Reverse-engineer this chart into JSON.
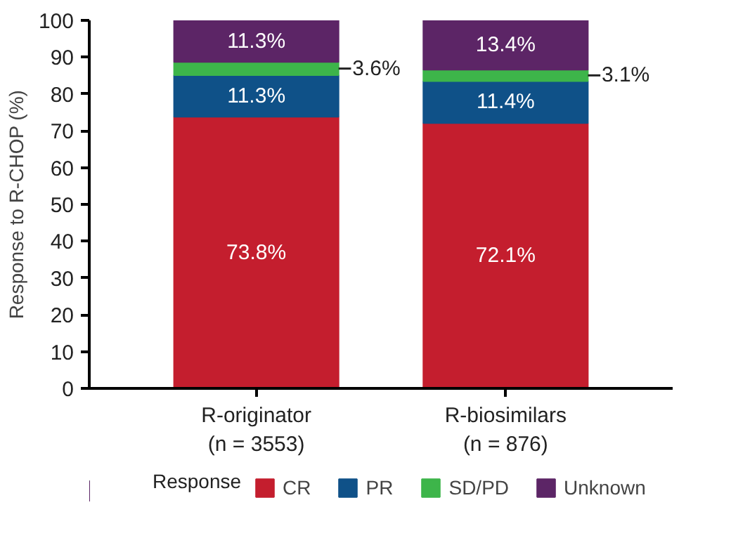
{
  "chart_data": {
    "type": "bar",
    "stacked": true,
    "ylabel": "Response to R-CHOP (%)",
    "legend_title": "Response",
    "legend": "bottom",
    "categories": [
      "R-originator\n(n = 3553)",
      "R-biosimilars\n(n = 876)"
    ],
    "series": [
      {
        "name": "CR",
        "color": "#c41e2e",
        "values": [
          73.8,
          72.1
        ],
        "value_labels": [
          "73.8%",
          "72.1%"
        ]
      },
      {
        "name": "PR",
        "color": "#0f5188",
        "values": [
          11.3,
          11.4
        ],
        "value_labels": [
          "11.3%",
          "11.4%"
        ]
      },
      {
        "name": "SD/PD",
        "color": "#3db54a",
        "values": [
          3.6,
          3.1
        ],
        "value_labels": [
          "3.6%",
          "3.1%"
        ]
      },
      {
        "name": "Unknown",
        "color": "#5c2566",
        "values": [
          11.3,
          13.4
        ],
        "value_labels": [
          "11.3%",
          "13.4%"
        ]
      }
    ],
    "ylim": [
      0,
      100
    ],
    "yticks": [
      0,
      10,
      20,
      30,
      40,
      50,
      60,
      70,
      80,
      90,
      100
    ],
    "grid": false
  }
}
